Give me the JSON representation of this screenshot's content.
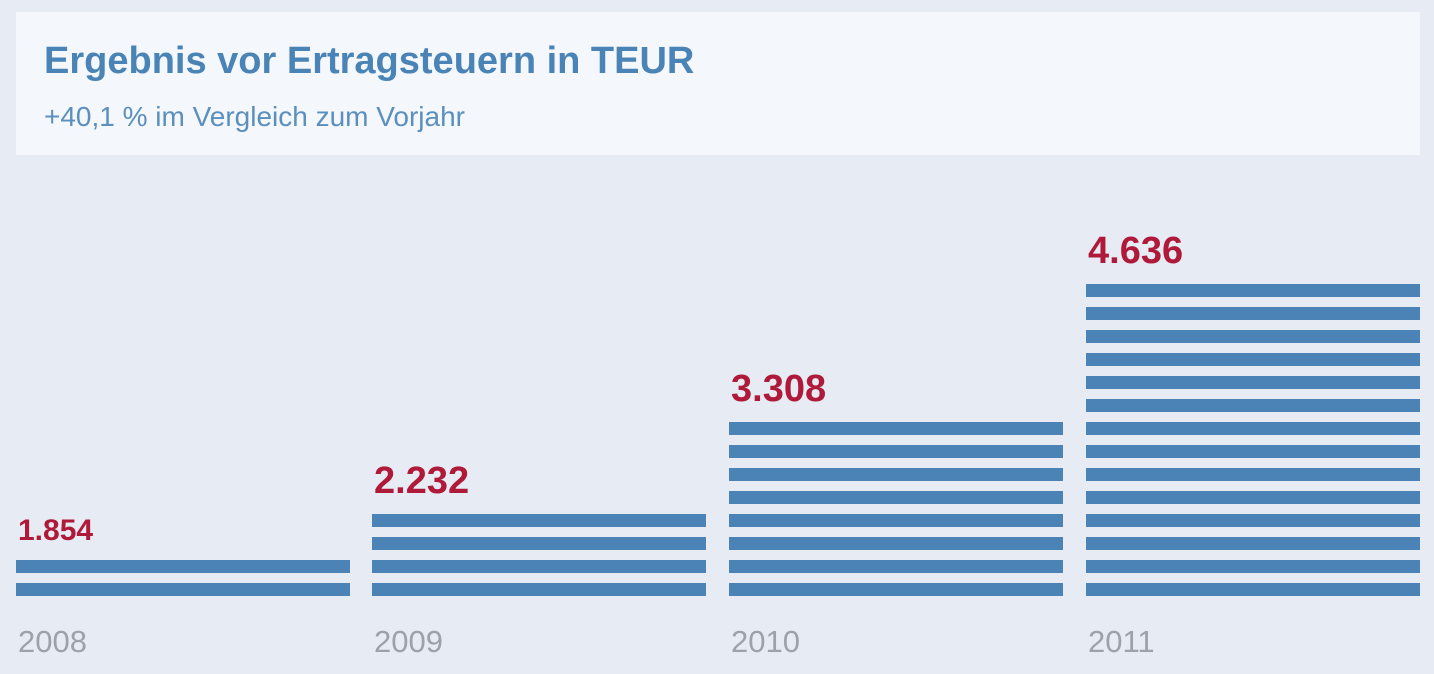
{
  "chart_data": {
    "type": "bar",
    "title": "Ergebnis vor Ertragsteuern in TEUR",
    "subtitle": "+40,1 % im Vergleich zum Vorjahr",
    "categories": [
      "2008",
      "2009",
      "2010",
      "2011"
    ],
    "values": [
      1854,
      2232,
      3308,
      4636
    ],
    "value_labels": [
      "1.854",
      "2.232",
      "3.308",
      "4.636"
    ],
    "stripe_counts": [
      2,
      4,
      8,
      14
    ],
    "xlabel": "",
    "ylabel": "",
    "grid": false,
    "colors": {
      "bar": "#4b83b6",
      "value_label": "#b01a3a",
      "year_label": "#9da2aa"
    }
  }
}
